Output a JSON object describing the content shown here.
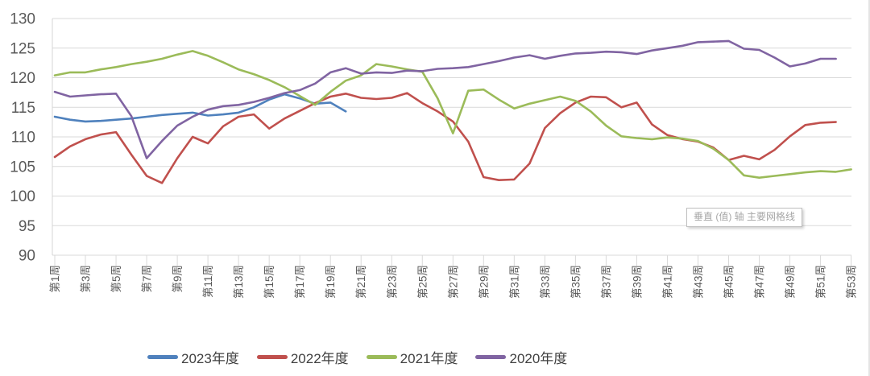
{
  "chart_data": {
    "type": "line",
    "title": "",
    "xlabel": "",
    "ylabel": "",
    "ylim": [
      90,
      130
    ],
    "y_ticks": [
      90,
      95,
      100,
      105,
      110,
      115,
      120,
      125,
      130
    ],
    "weeks_total": 53,
    "x_tick_labels": [
      "第1周",
      "第3周",
      "第5周",
      "第7周",
      "第9周",
      "第11周",
      "第13周",
      "第15周",
      "第17周",
      "第19周",
      "第21周",
      "第23周",
      "第25周",
      "第27周",
      "第29周",
      "第31周",
      "第33周",
      "第35周",
      "第37周",
      "第39周",
      "第41周",
      "第43周",
      "第45周",
      "第47周",
      "第49周",
      "第51周",
      "第53周"
    ],
    "grid": true,
    "legend_position": "bottom",
    "series": [
      {
        "name": "2023年度",
        "color": "#4F81BD",
        "start_week": 1,
        "values": [
          113.4,
          112.9,
          112.6,
          112.7,
          112.9,
          113.1,
          113.4,
          113.7,
          113.9,
          114.1,
          113.6,
          113.8,
          114.1,
          115.0,
          116.3,
          117.2,
          116.5,
          115.6,
          115.8,
          114.3
        ]
      },
      {
        "name": "2022年度",
        "color": "#C0504D",
        "start_week": 1,
        "values": [
          106.6,
          108.4,
          109.6,
          110.4,
          110.8,
          107.0,
          103.4,
          102.2,
          106.4,
          110.0,
          108.9,
          111.8,
          113.4,
          113.8,
          111.4,
          113.1,
          114.4,
          115.7,
          116.8,
          117.3,
          116.6,
          116.4,
          116.6,
          117.4,
          115.7,
          114.3,
          112.6,
          109.2,
          103.2,
          102.7,
          102.8,
          105.5,
          111.5,
          114.0,
          115.8,
          116.8,
          116.7,
          115.0,
          115.8,
          112.1,
          110.3,
          109.6,
          109.2,
          108.2,
          106.1,
          106.8,
          106.2,
          107.8,
          110.1,
          112.0,
          112.4,
          112.5
        ]
      },
      {
        "name": "2021年度",
        "color": "#9BBB59",
        "start_week": 1,
        "values": [
          120.4,
          120.9,
          120.9,
          121.4,
          121.8,
          122.3,
          122.7,
          123.2,
          123.9,
          124.5,
          123.7,
          122.6,
          121.4,
          120.6,
          119.6,
          118.4,
          116.9,
          115.4,
          117.6,
          119.5,
          120.4,
          122.3,
          121.9,
          121.4,
          121.0,
          116.5,
          110.6,
          117.8,
          118.0,
          116.3,
          114.8,
          115.6,
          116.2,
          116.8,
          116.1,
          114.3,
          111.9,
          110.1,
          109.8,
          109.6,
          109.9,
          109.7,
          109.3,
          108.0,
          106.1,
          103.5,
          103.1,
          103.4,
          103.7,
          104.0,
          104.2,
          104.1,
          104.5
        ]
      },
      {
        "name": "2020年度",
        "color": "#8064A2",
        "start_week": 1,
        "values": [
          117.6,
          116.8,
          117.0,
          117.2,
          117.3,
          113.5,
          106.4,
          109.3,
          111.9,
          113.4,
          114.6,
          115.2,
          115.4,
          115.9,
          116.6,
          117.4,
          117.9,
          119.0,
          120.9,
          121.6,
          120.7,
          120.9,
          120.8,
          121.2,
          121.1,
          121.5,
          121.6,
          121.8,
          122.3,
          122.8,
          123.4,
          123.8,
          123.2,
          123.7,
          124.1,
          124.2,
          124.4,
          124.3,
          124.0,
          124.6,
          125.0,
          125.4,
          126.0,
          126.1,
          126.2,
          124.9,
          124.7,
          123.4,
          121.9,
          122.4,
          123.2,
          123.2
        ]
      }
    ]
  },
  "tooltip": {
    "text": "垂直 (值) 轴 主要网格线"
  },
  "colors": {
    "grid": "#D9D9D9",
    "axis_line": "#D4D4D4",
    "axis_label": "#595959",
    "legend_text": "#404040",
    "tooltip_text": "#A6A6A6",
    "tooltip_border": "#BFBFBF",
    "background": "#FFFFFF"
  }
}
